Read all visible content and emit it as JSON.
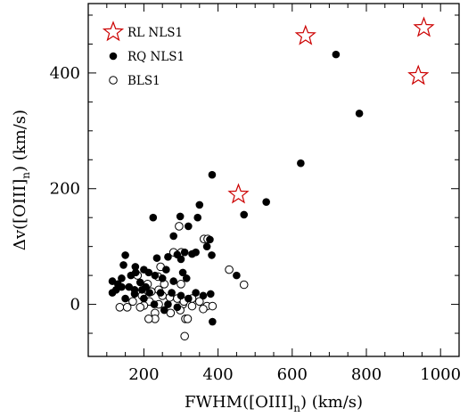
{
  "chart_data": {
    "type": "scatter",
    "xlabel": "FWHM([OIII]",
    "xlabel_sub": "n",
    "xlabel_tail": ") (km/s)",
    "ylabel": "Δv([OIII]",
    "ylabel_sub": "n",
    "ylabel_tail": ") (km/s)",
    "xlim": [
      50,
      1050
    ],
    "ylim": [
      -90,
      520
    ],
    "xticks": [
      200,
      400,
      600,
      800,
      1000
    ],
    "yticks": [
      0,
      200,
      400
    ],
    "grid": false,
    "legend_position": "top-left",
    "series": [
      {
        "name": "RL NLS1",
        "marker": "star-open",
        "color": "#cc0000",
        "points": [
          [
            455,
            190
          ],
          [
            636,
            464
          ],
          [
            940,
            395
          ],
          [
            955,
            478
          ]
        ]
      },
      {
        "name": "RQ NLS1",
        "marker": "circle-filled",
        "color": "#000000",
        "points": [
          [
            718,
            432
          ],
          [
            781,
            330
          ],
          [
            623,
            244
          ],
          [
            384,
            224
          ],
          [
            530,
            177
          ],
          [
            470,
            155
          ],
          [
            350,
            172
          ],
          [
            298,
            152
          ],
          [
            345,
            150
          ],
          [
            225,
            150
          ],
          [
            320,
            135
          ],
          [
            378,
            112
          ],
          [
            280,
            118
          ],
          [
            370,
            100
          ],
          [
            383,
            85
          ],
          [
            340,
            90
          ],
          [
            310,
            90
          ],
          [
            330,
            87
          ],
          [
            290,
            86
          ],
          [
            300,
            78
          ],
          [
            150,
            85
          ],
          [
            177,
            65
          ],
          [
            145,
            68
          ],
          [
            265,
            82
          ],
          [
            235,
            80
          ],
          [
            213,
            55
          ],
          [
            200,
            60
          ],
          [
            178,
            55
          ],
          [
            230,
            50
          ],
          [
            250,
            45
          ],
          [
            260,
            60
          ],
          [
            305,
            55
          ],
          [
            315,
            45
          ],
          [
            280,
            40
          ],
          [
            165,
            50
          ],
          [
            140,
            45
          ],
          [
            115,
            40
          ],
          [
            130,
            35
          ],
          [
            190,
            38
          ],
          [
            205,
            30
          ],
          [
            160,
            30
          ],
          [
            140,
            30
          ],
          [
            125,
            25
          ],
          [
            175,
            25
          ],
          [
            195,
            25
          ],
          [
            215,
            20
          ],
          [
            245,
            20
          ],
          [
            275,
            20
          ],
          [
            300,
            15
          ],
          [
            320,
            10
          ],
          [
            340,
            20
          ],
          [
            360,
            15
          ],
          [
            380,
            18
          ],
          [
            150,
            10
          ],
          [
            175,
            18
          ],
          [
            200,
            10
          ],
          [
            228,
            0
          ],
          [
            265,
            0
          ],
          [
            290,
            -5
          ],
          [
            450,
            50
          ],
          [
            385,
            -30
          ],
          [
            115,
            20
          ],
          [
            255,
            -10
          ]
        ]
      },
      {
        "name": "BLS1",
        "marker": "circle-open",
        "color": "#000000",
        "points": [
          [
            295,
            135
          ],
          [
            362,
            113
          ],
          [
            372,
            113
          ],
          [
            280,
            90
          ],
          [
            301,
            90
          ],
          [
            245,
            65
          ],
          [
            238,
            48
          ],
          [
            430,
            60
          ],
          [
            470,
            34
          ],
          [
            183,
            50
          ],
          [
            210,
            35
          ],
          [
            255,
            35
          ],
          [
            300,
            35
          ],
          [
            240,
            25
          ],
          [
            220,
            22
          ],
          [
            195,
            15
          ],
          [
            250,
            15
          ],
          [
            270,
            12
          ],
          [
            290,
            10
          ],
          [
            330,
            10
          ],
          [
            350,
            5
          ],
          [
            215,
            5
          ],
          [
            170,
            5
          ],
          [
            200,
            -2
          ],
          [
            240,
            0
          ],
          [
            305,
            0
          ],
          [
            308,
            5
          ],
          [
            330,
            -3
          ],
          [
            370,
            -3
          ],
          [
            385,
            -3
          ],
          [
            135,
            -5
          ],
          [
            155,
            -5
          ],
          [
            190,
            -5
          ],
          [
            230,
            -15
          ],
          [
            272,
            -15
          ],
          [
            298,
            -10
          ],
          [
            312,
            -25
          ],
          [
            230,
            -25
          ],
          [
            213,
            -25
          ],
          [
            318,
            -25
          ],
          [
            310,
            -55
          ],
          [
            360,
            -8
          ]
        ]
      }
    ]
  }
}
